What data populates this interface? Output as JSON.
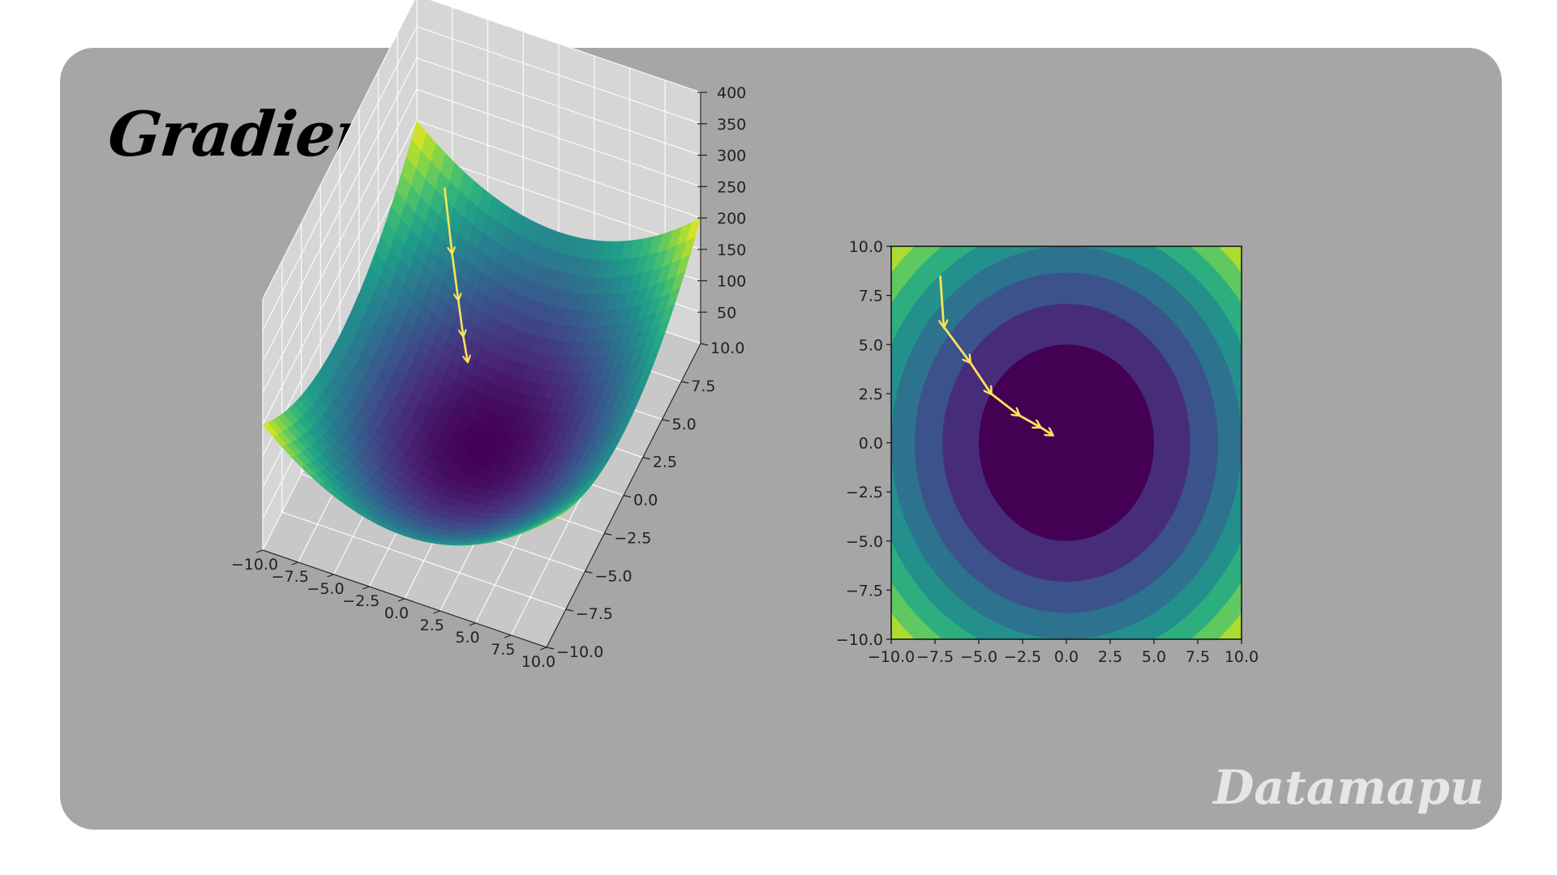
{
  "title": "Gradient Descent",
  "watermark": "Datamapu",
  "colors": {
    "card_background": "#a6a6a6",
    "pane_floor": "#c8c8c8",
    "pane_wall": "#d6d6d6",
    "arrow": "#fde35a",
    "viridis": [
      "#440154",
      "#482878",
      "#3e4a89",
      "#31688e",
      "#26828e",
      "#1f9e89",
      "#35b779",
      "#6ece58",
      "#b5de2b",
      "#fde725"
    ]
  },
  "chart_data": [
    {
      "type": "surface",
      "function": "x^2 + y^2",
      "colormap": "viridis",
      "x_ticks": [
        "−10.0",
        "−7.5",
        "−5.0",
        "−2.5",
        "0.0",
        "2.5",
        "5.0",
        "7.5",
        "10.0"
      ],
      "y_ticks": [
        "−10.0",
        "−7.5",
        "−5.0",
        "−2.5",
        "0.0",
        "2.5",
        "5.0",
        "7.5",
        "10.0"
      ],
      "z_ticks": [
        "50",
        "100",
        "150",
        "200",
        "250",
        "300",
        "350",
        "400"
      ],
      "xlim": [
        -10,
        10
      ],
      "ylim": [
        -10,
        10
      ],
      "zlim": [
        0,
        400
      ],
      "grid": true,
      "descent_path": [
        {
          "x": -7.5,
          "y": 9.0,
          "z": 137
        },
        {
          "x": -6.0,
          "y": 7.2,
          "z": 88
        },
        {
          "x": -4.8,
          "y": 5.8,
          "z": 57
        },
        {
          "x": -3.8,
          "y": 4.6,
          "z": 36
        },
        {
          "x": -3.0,
          "y": 3.7,
          "z": 23
        }
      ]
    },
    {
      "type": "contour",
      "function": "x^2 + y^2",
      "colormap": "viridis",
      "x_ticks": [
        "−10.0",
        "−7.5",
        "−5.0",
        "−2.5",
        "0.0",
        "2.5",
        "5.0",
        "7.5",
        "10.0"
      ],
      "y_ticks": [
        "−10.0",
        "−7.5",
        "−5.0",
        "−2.5",
        "0.0",
        "2.5",
        "5.0",
        "7.5",
        "10.0"
      ],
      "xlim": [
        -10,
        10
      ],
      "ylim": [
        -10,
        10
      ],
      "contour_levels": [
        0,
        25,
        50,
        75,
        100,
        125,
        150,
        175,
        200
      ],
      "descent_path": [
        {
          "x": -7.2,
          "y": 8.5
        },
        {
          "x": -7.0,
          "y": 5.9
        },
        {
          "x": -5.5,
          "y": 4.1
        },
        {
          "x": -4.3,
          "y": 2.5
        },
        {
          "x": -2.7,
          "y": 1.4
        },
        {
          "x": -1.5,
          "y": 0.8
        },
        {
          "x": -0.8,
          "y": 0.4
        }
      ]
    }
  ]
}
